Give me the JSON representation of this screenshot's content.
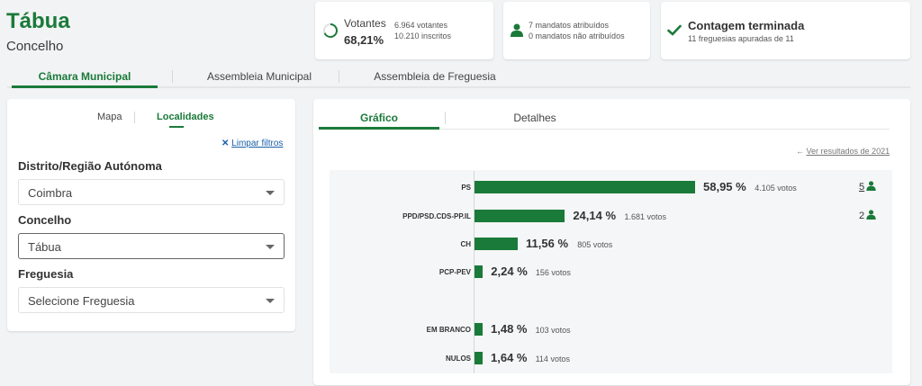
{
  "header": {
    "title": "Tábua",
    "subtitle": "Concelho"
  },
  "stats": {
    "votantes_label": "Votantes",
    "votantes_pct": "68,21%",
    "votantes_count": "6.964 votantes",
    "inscritos": "10.210 inscritos",
    "mandatos_atribuidos": "7 mandatos atribuídos",
    "mandatos_nao_atribuidos": "0 mandatos não atribuídos",
    "contagem_title": "Contagem terminada",
    "contagem_sub": "11 freguesias apuradas de 11"
  },
  "tabs": [
    "Câmara Municipal",
    "Assembleia Municipal",
    "Assembleia de Freguesia"
  ],
  "left_panel": {
    "subtabs": [
      "Mapa",
      "Localidades"
    ],
    "clear_filters": "Limpar filtros",
    "fields": [
      {
        "label": "Distrito/Região Autónoma",
        "value": "Coimbra"
      },
      {
        "label": "Concelho",
        "value": "Tábua"
      },
      {
        "label": "Freguesia",
        "value": "Selecione Freguesia"
      }
    ]
  },
  "right_panel": {
    "subtabs": [
      "Gráfico",
      "Detalhes"
    ],
    "results_link": "Ver resultados de 2021"
  },
  "colors": {
    "accent": "#1a7a3a",
    "bar": "#1a7a3a"
  },
  "chart_data": {
    "type": "bar",
    "orientation": "horizontal",
    "categories": [
      "PS",
      "PPD/PSD.CDS-PP.IL",
      "CH",
      "PCP-PEV",
      "EM BRANCO",
      "NULOS"
    ],
    "values": [
      58.95,
      24.14,
      11.56,
      2.24,
      1.48,
      1.64
    ],
    "value_labels": [
      "58,95 %",
      "24,14 %",
      "11,56 %",
      "2,24 %",
      "1,48 %",
      "1,64 %"
    ],
    "votes_labels": [
      "4.105 votos",
      "1.681 votos",
      "805 votos",
      "156 votos",
      "103 votos",
      "114 votos"
    ],
    "mandates": [
      "5",
      "2",
      "",
      "",
      "",
      ""
    ]
  }
}
